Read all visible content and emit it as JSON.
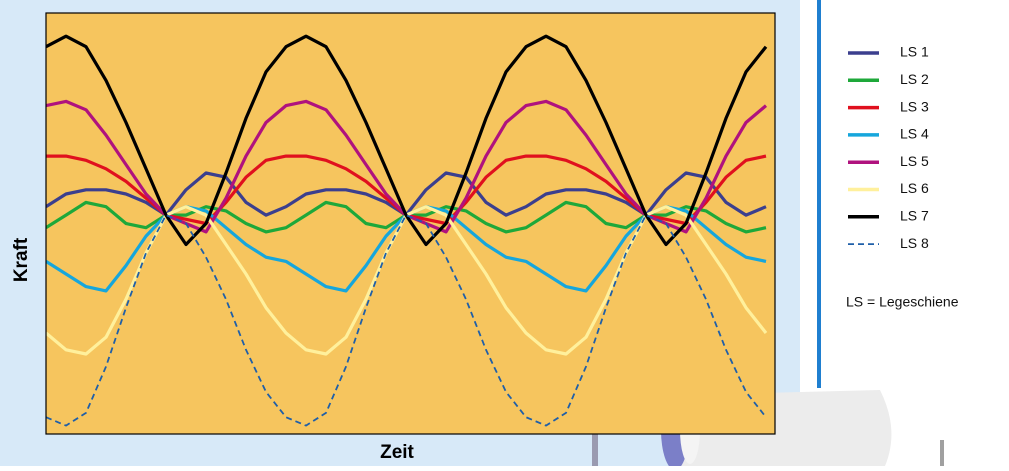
{
  "chart_data": {
    "type": "line",
    "xlabel": "Zeit",
    "ylabel": "Kraft",
    "x": [
      0,
      1,
      2,
      3,
      4,
      5,
      6,
      7,
      8,
      9,
      10,
      11,
      12,
      13,
      14,
      15,
      16,
      17,
      18,
      19,
      20,
      21,
      22,
      23,
      24,
      25,
      26,
      27,
      28,
      29,
      30,
      31,
      32,
      33,
      34,
      35,
      36
    ],
    "xlim": [
      0,
      36.45
    ],
    "ylim": [
      0,
      100
    ],
    "background": "#f6c55e",
    "series": [
      {
        "name": "LS 1",
        "color": "#3b3f8e",
        "values": [
          54,
          57,
          58,
          58,
          57,
          55,
          52,
          58,
          62,
          61,
          55,
          52,
          54,
          57,
          58,
          58,
          57,
          55,
          52,
          58,
          62,
          61,
          55,
          52,
          54,
          57,
          58,
          58,
          57,
          55,
          52,
          58,
          62,
          61,
          55,
          52,
          54
        ]
      },
      {
        "name": "LS 2",
        "color": "#1ea83a",
        "values": [
          49,
          52,
          55,
          54,
          50,
          49,
          52,
          52,
          54,
          53,
          50,
          48,
          49,
          52,
          55,
          54,
          50,
          49,
          52,
          52,
          54,
          53,
          50,
          48,
          49,
          52,
          55,
          54,
          50,
          49,
          52,
          52,
          54,
          53,
          50,
          48,
          49
        ]
      },
      {
        "name": "LS 3",
        "color": "#e0101e",
        "values": [
          66,
          66,
          65,
          63,
          60,
          56,
          52,
          51,
          50,
          55,
          61,
          65,
          66,
          66,
          65,
          63,
          60,
          56,
          52,
          51,
          50,
          55,
          61,
          65,
          66,
          66,
          65,
          63,
          60,
          56,
          52,
          51,
          50,
          55,
          61,
          65,
          66
        ]
      },
      {
        "name": "LS 4",
        "color": "#16a6dc",
        "values": [
          41,
          38,
          35,
          34,
          40,
          47,
          52,
          54,
          53,
          49,
          45,
          42,
          41,
          38,
          35,
          34,
          40,
          47,
          52,
          54,
          53,
          49,
          45,
          42,
          41,
          38,
          35,
          34,
          40,
          47,
          52,
          54,
          53,
          49,
          45,
          42,
          41
        ]
      },
      {
        "name": "LS 5",
        "color": "#b0127e",
        "values": [
          78,
          79,
          77,
          71,
          64,
          57,
          52,
          50,
          48,
          56,
          66,
          74,
          78,
          79,
          77,
          71,
          64,
          57,
          52,
          50,
          48,
          56,
          66,
          74,
          78,
          79,
          77,
          71,
          64,
          57,
          52,
          50,
          48,
          56,
          66,
          74,
          78
        ]
      },
      {
        "name": "LS 6",
        "color": "#fff09c",
        "values": [
          24,
          20,
          19,
          23,
          32,
          43,
          52,
          54,
          52,
          45,
          38,
          30,
          24,
          20,
          19,
          23,
          32,
          43,
          52,
          54,
          52,
          45,
          38,
          30,
          24,
          20,
          19,
          23,
          32,
          43,
          52,
          54,
          52,
          45,
          38,
          30,
          24
        ]
      },
      {
        "name": "LS 7",
        "color": "#000000",
        "values": [
          92,
          94.5,
          92,
          84,
          74,
          63,
          52,
          45,
          50,
          62,
          75,
          86,
          92,
          94.5,
          92,
          84,
          74,
          63,
          52,
          45,
          50,
          62,
          75,
          86,
          92,
          94.5,
          92,
          84,
          74,
          63,
          52,
          45,
          50,
          62,
          75,
          86,
          92
        ]
      },
      {
        "name": "LS 8",
        "color": "#1f5fa8",
        "linestyle": "dashed",
        "values": [
          4,
          2,
          5,
          16,
          30,
          43,
          52,
          50,
          42,
          32,
          20,
          10,
          4,
          2,
          5,
          16,
          30,
          43,
          52,
          50,
          42,
          32,
          20,
          10,
          4,
          2,
          5,
          16,
          30,
          43,
          52,
          50,
          42,
          32,
          20,
          10,
          4
        ]
      }
    ],
    "note": "LS = Legeschiene"
  }
}
